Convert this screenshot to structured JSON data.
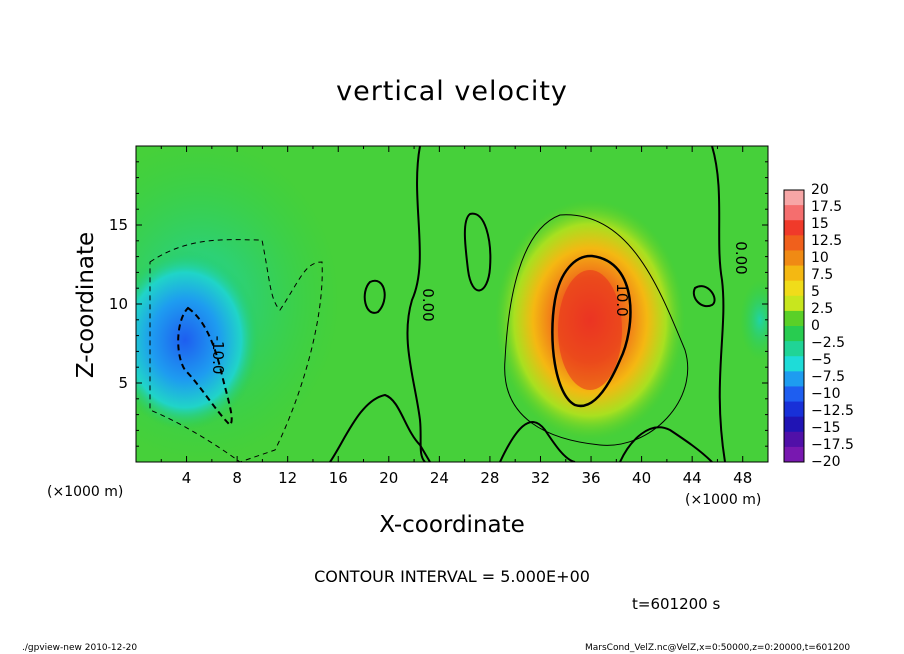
{
  "chart_data": {
    "type": "heatmap",
    "title": "vertical velocity",
    "xlabel": "X-coordinate",
    "ylabel": "Z-coordinate",
    "x_unit_left": "(×1000 m)",
    "x_unit_right": "(×1000 m)",
    "xlim": [
      0,
      50
    ],
    "ylim": [
      0,
      20
    ],
    "x_ticks": [
      "4",
      "8",
      "12",
      "16",
      "20",
      "24",
      "28",
      "32",
      "36",
      "40",
      "44",
      "48"
    ],
    "y_ticks": [
      "5",
      "10",
      "15"
    ],
    "colorbar_labels": [
      "20",
      "17.5",
      "15",
      "12.5",
      "10",
      "7.5",
      "5",
      "2.5",
      "0",
      "−2.5",
      "−5",
      "−7.5",
      "−10",
      "−12.5",
      "−15",
      "−17.5",
      "−20"
    ],
    "colorbar_colors": [
      "#f7a6a6",
      "#f56e6e",
      "#f03a2a",
      "#f0601c",
      "#f08a14",
      "#f4b812",
      "#f0dc1a",
      "#c8e61e",
      "#5ad028",
      "#28cc50",
      "#20d496",
      "#1edcd8",
      "#1e9cf0",
      "#1e5ef0",
      "#1830d8",
      "#2014b4",
      "#5010a8",
      "#7818b0"
    ],
    "contour_labels": [
      "-10.0",
      "0.00",
      "10.0",
      "0.00"
    ],
    "contour_interval_text": "CONTOUR INTERVAL = 5.000E+00",
    "time_text": "t=601200 s"
  },
  "footer": {
    "left": "./gpview-new   2010-12-20",
    "right": "MarsCond_VelZ.nc@VelZ,x=0:50000,z=0:20000,t=601200"
  }
}
